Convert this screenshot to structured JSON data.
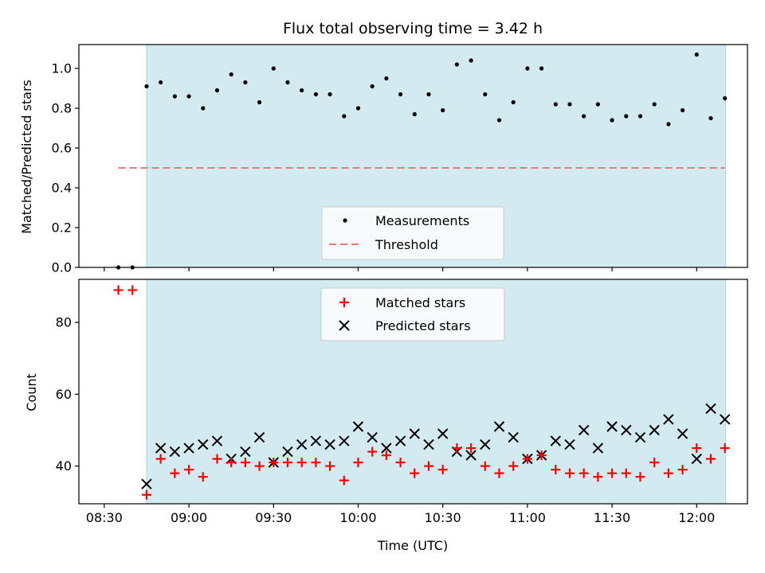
{
  "chart_data": [
    {
      "type": "scatter",
      "title": "Flux total observing time = 3.42 h",
      "xlabel": "",
      "ylabel": "Matched/Predicted stars",
      "xlim": [
        -0.15,
        3.8
      ],
      "ylim": [
        0.0,
        1.12
      ],
      "yticks": [
        0.0,
        0.2,
        0.4,
        0.6,
        0.8,
        1.0
      ],
      "ytick_labels": [
        "0.0",
        "0.2",
        "0.4",
        "0.6",
        "0.8",
        "1.0"
      ],
      "shaded_region": [
        0.25,
        3.67
      ],
      "legend": {
        "position": "lower-center",
        "entries": [
          "Measurements",
          "Threshold"
        ]
      },
      "series": [
        {
          "name": "Measurements",
          "marker": "dot",
          "color": "#000000",
          "x": [
            0.0833,
            0.1667,
            0.25,
            0.3333,
            0.4167,
            0.5,
            0.5833,
            0.6667,
            0.75,
            0.8333,
            0.9167,
            1.0,
            1.0833,
            1.1667,
            1.25,
            1.3333,
            1.4167,
            1.5,
            1.5833,
            1.6667,
            1.75,
            1.8333,
            1.9167,
            2.0,
            2.0833,
            2.1667,
            2.25,
            2.3333,
            2.4167,
            2.5,
            2.5833,
            2.6667,
            2.75,
            2.8333,
            2.9167,
            3.0,
            3.0833,
            3.1667,
            3.25,
            3.3333,
            3.4167,
            3.5,
            3.5833,
            3.6667
          ],
          "y": [
            0.0,
            0.0,
            0.91,
            0.93,
            0.86,
            0.86,
            0.8,
            0.89,
            0.97,
            0.93,
            0.83,
            1.0,
            0.93,
            0.89,
            0.87,
            0.87,
            0.76,
            0.8,
            0.91,
            0.95,
            0.87,
            0.77,
            0.87,
            0.79,
            1.02,
            1.04,
            0.87,
            0.74,
            0.83,
            1.0,
            1.0,
            0.82,
            0.82,
            0.76,
            0.82,
            0.74,
            0.76,
            0.76,
            0.82,
            0.72,
            0.79,
            1.07,
            0.75,
            0.85
          ]
        },
        {
          "name": "Threshold",
          "style": "dashed",
          "color": "#f07878",
          "x": [
            0.0833,
            3.6667
          ],
          "y": [
            0.5,
            0.5
          ]
        }
      ]
    },
    {
      "type": "scatter",
      "title": "",
      "xlabel": "Time (UTC)",
      "ylabel": "Count",
      "xlim": [
        -0.15,
        3.8
      ],
      "ylim": [
        29.5,
        92.0
      ],
      "yticks": [
        40,
        60,
        80
      ],
      "ytick_labels": [
        "40",
        "60",
        "80"
      ],
      "xticks": [
        0.0,
        0.5,
        1.0,
        1.5,
        2.0,
        2.5,
        3.0,
        3.5
      ],
      "xtick_labels": [
        "08:30",
        "09:00",
        "09:30",
        "10:00",
        "10:30",
        "11:00",
        "11:30",
        "12:00"
      ],
      "shaded_region": [
        0.25,
        3.67
      ],
      "legend": {
        "position": "upper-center",
        "entries": [
          "Matched stars",
          "Predicted stars"
        ]
      },
      "series": [
        {
          "name": "Matched stars",
          "marker": "plus",
          "color": "#ff0000",
          "x": [
            0.0833,
            0.1667,
            0.25,
            0.3333,
            0.4167,
            0.5,
            0.5833,
            0.6667,
            0.75,
            0.8333,
            0.9167,
            1.0,
            1.0833,
            1.1667,
            1.25,
            1.3333,
            1.4167,
            1.5,
            1.5833,
            1.6667,
            1.75,
            1.8333,
            1.9167,
            2.0,
            2.0833,
            2.1667,
            2.25,
            2.3333,
            2.4167,
            2.5,
            2.5833,
            2.6667,
            2.75,
            2.8333,
            2.9167,
            3.0,
            3.0833,
            3.1667,
            3.25,
            3.3333,
            3.4167,
            3.5,
            3.5833,
            3.6667
          ],
          "y": [
            89,
            89,
            32,
            42,
            38,
            39,
            37,
            42,
            41,
            41,
            40,
            41,
            41,
            41,
            41,
            40,
            36,
            41,
            44,
            43,
            41,
            38,
            40,
            39,
            45,
            45,
            40,
            38,
            40,
            42,
            43,
            39,
            38,
            38,
            37,
            38,
            38,
            37,
            41,
            38,
            39,
            45,
            42,
            45
          ]
        },
        {
          "name": "Predicted stars",
          "marker": "x",
          "color": "#000000",
          "x": [
            0.25,
            0.3333,
            0.4167,
            0.5,
            0.5833,
            0.6667,
            0.75,
            0.8333,
            0.9167,
            1.0,
            1.0833,
            1.1667,
            1.25,
            1.3333,
            1.4167,
            1.5,
            1.5833,
            1.6667,
            1.75,
            1.8333,
            1.9167,
            2.0,
            2.0833,
            2.1667,
            2.25,
            2.3333,
            2.4167,
            2.5,
            2.5833,
            2.6667,
            2.75,
            2.8333,
            2.9167,
            3.0,
            3.0833,
            3.1667,
            3.25,
            3.3333,
            3.4167,
            3.5,
            3.5833,
            3.6667
          ],
          "y": [
            35,
            45,
            44,
            45,
            46,
            47,
            42,
            44,
            48,
            41,
            44,
            46,
            47,
            46,
            47,
            51,
            48,
            45,
            47,
            49,
            46,
            49,
            44,
            43,
            46,
            51,
            48,
            42,
            43,
            47,
            46,
            50,
            45,
            51,
            50,
            48,
            50,
            53,
            49,
            42,
            56,
            53
          ]
        }
      ]
    }
  ],
  "colors": {
    "shade": "#d4eaf1",
    "shade_edge": "#a9d3e2"
  }
}
